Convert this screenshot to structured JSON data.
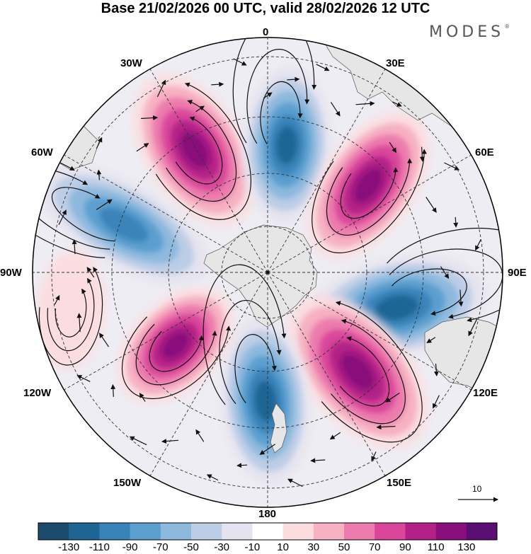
{
  "title": "Base 21/02/2026 00 UTC, valid 28/02/2026 12 UTC",
  "logo": {
    "text": "MODES",
    "mark": "®"
  },
  "projection": "south-polar-stereographic",
  "longitude_labels": {
    "lon_0": "0",
    "lon_30e": "30E",
    "lon_60e": "60E",
    "lon_90e": "90E",
    "lon_120e": "120E",
    "lon_150e": "150E",
    "lon_180": "180",
    "lon_150w": "150W",
    "lon_120w": "120W",
    "lon_90w": "90W",
    "lon_60w": "60W",
    "lon_30w": "30W"
  },
  "anomaly_centers": [
    {
      "name": "anomaly-30w-positive",
      "longitude": "30W",
      "value": 130
    },
    {
      "name": "anomaly-0-negative",
      "longitude": "0",
      "value": -130
    },
    {
      "name": "anomaly-45e-positive",
      "longitude": "45E",
      "value": 130
    },
    {
      "name": "anomaly-60w-negative",
      "longitude": "60W",
      "value": -110
    },
    {
      "name": "anomaly-100e-negative",
      "longitude": "100E",
      "value": -130
    },
    {
      "name": "anomaly-140e-positive",
      "longitude": "140E",
      "value": 130
    },
    {
      "name": "anomaly-180-negative",
      "longitude": "180",
      "value": -130
    },
    {
      "name": "anomaly-130w-positive",
      "longitude": "130W",
      "value": 130
    },
    {
      "name": "anomaly-100w-weak-positive",
      "longitude": "100W",
      "value": 30
    }
  ],
  "colorbar": {
    "ticks": [
      "-130",
      "-110",
      "-90",
      "-70",
      "-50",
      "-30",
      "-10",
      "10",
      "30",
      "50",
      "70",
      "90",
      "110",
      "130"
    ],
    "colors": [
      "#1d4b6b",
      "#1f6594",
      "#3a83b9",
      "#5b9fcf",
      "#8db9dd",
      "#bccde6",
      "#e4e3ef",
      "#ffffff",
      "#fbdde0",
      "#f6b1c2",
      "#ec7cad",
      "#d9469a",
      "#b22186",
      "#8a0f7c",
      "#5b0e72"
    ]
  },
  "wind_reference": {
    "label": "10"
  },
  "colors": {
    "land": "#e6e6e6",
    "frame": "#000000"
  }
}
